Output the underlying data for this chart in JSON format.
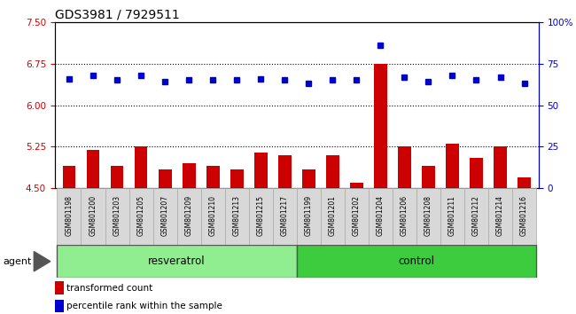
{
  "title": "GDS3981 / 7929511",
  "samples": [
    "GSM801198",
    "GSM801200",
    "GSM801203",
    "GSM801205",
    "GSM801207",
    "GSM801209",
    "GSM801210",
    "GSM801213",
    "GSM801215",
    "GSM801217",
    "GSM801199",
    "GSM801201",
    "GSM801202",
    "GSM801204",
    "GSM801206",
    "GSM801208",
    "GSM801211",
    "GSM801212",
    "GSM801214",
    "GSM801216"
  ],
  "n_resveratrol": 10,
  "transformed_count": [
    4.9,
    5.2,
    4.9,
    5.25,
    4.85,
    4.95,
    4.9,
    4.85,
    5.15,
    5.1,
    4.85,
    5.1,
    4.6,
    6.75,
    5.25,
    4.9,
    5.3,
    5.05,
    5.25,
    4.7
  ],
  "percentile_rank": [
    66,
    68,
    65,
    68,
    64,
    65,
    65,
    65,
    66,
    65,
    63,
    65,
    65,
    86,
    67,
    64,
    68,
    65,
    67,
    63
  ],
  "ylim_left": [
    4.5,
    7.5
  ],
  "ylim_right": [
    0,
    100
  ],
  "yticks_left": [
    4.5,
    5.25,
    6.0,
    6.75,
    7.5
  ],
  "yticks_right": [
    0,
    25,
    50,
    75,
    100
  ],
  "bar_color": "#cc0000",
  "dot_color": "#0000cc",
  "bar_bottom": 4.5,
  "resveratrol_color": "#90ee90",
  "control_color": "#3dcc3d",
  "agent_label": "agent",
  "resveratrol_label": "resveratrol",
  "control_label": "control",
  "legend_bar": "transformed count",
  "legend_dot": "percentile rank within the sample",
  "title_fontsize": 10,
  "tick_label_fontsize": 7.5,
  "sample_fontsize": 5.5,
  "group_fontsize": 8.5,
  "legend_fontsize": 7.5
}
